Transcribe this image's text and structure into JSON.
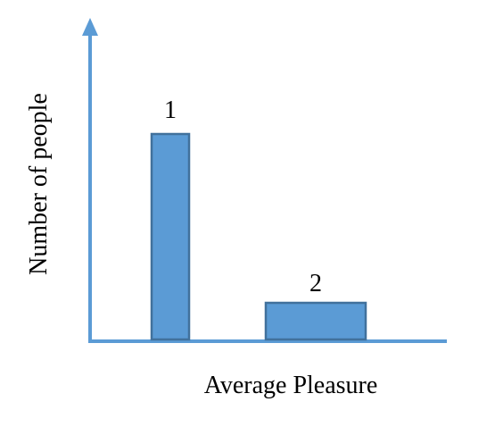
{
  "axes": {
    "x_label": "Average Pleasure",
    "y_label": "Number of people"
  },
  "bars": [
    {
      "label": "1"
    },
    {
      "label": "2"
    }
  ]
}
